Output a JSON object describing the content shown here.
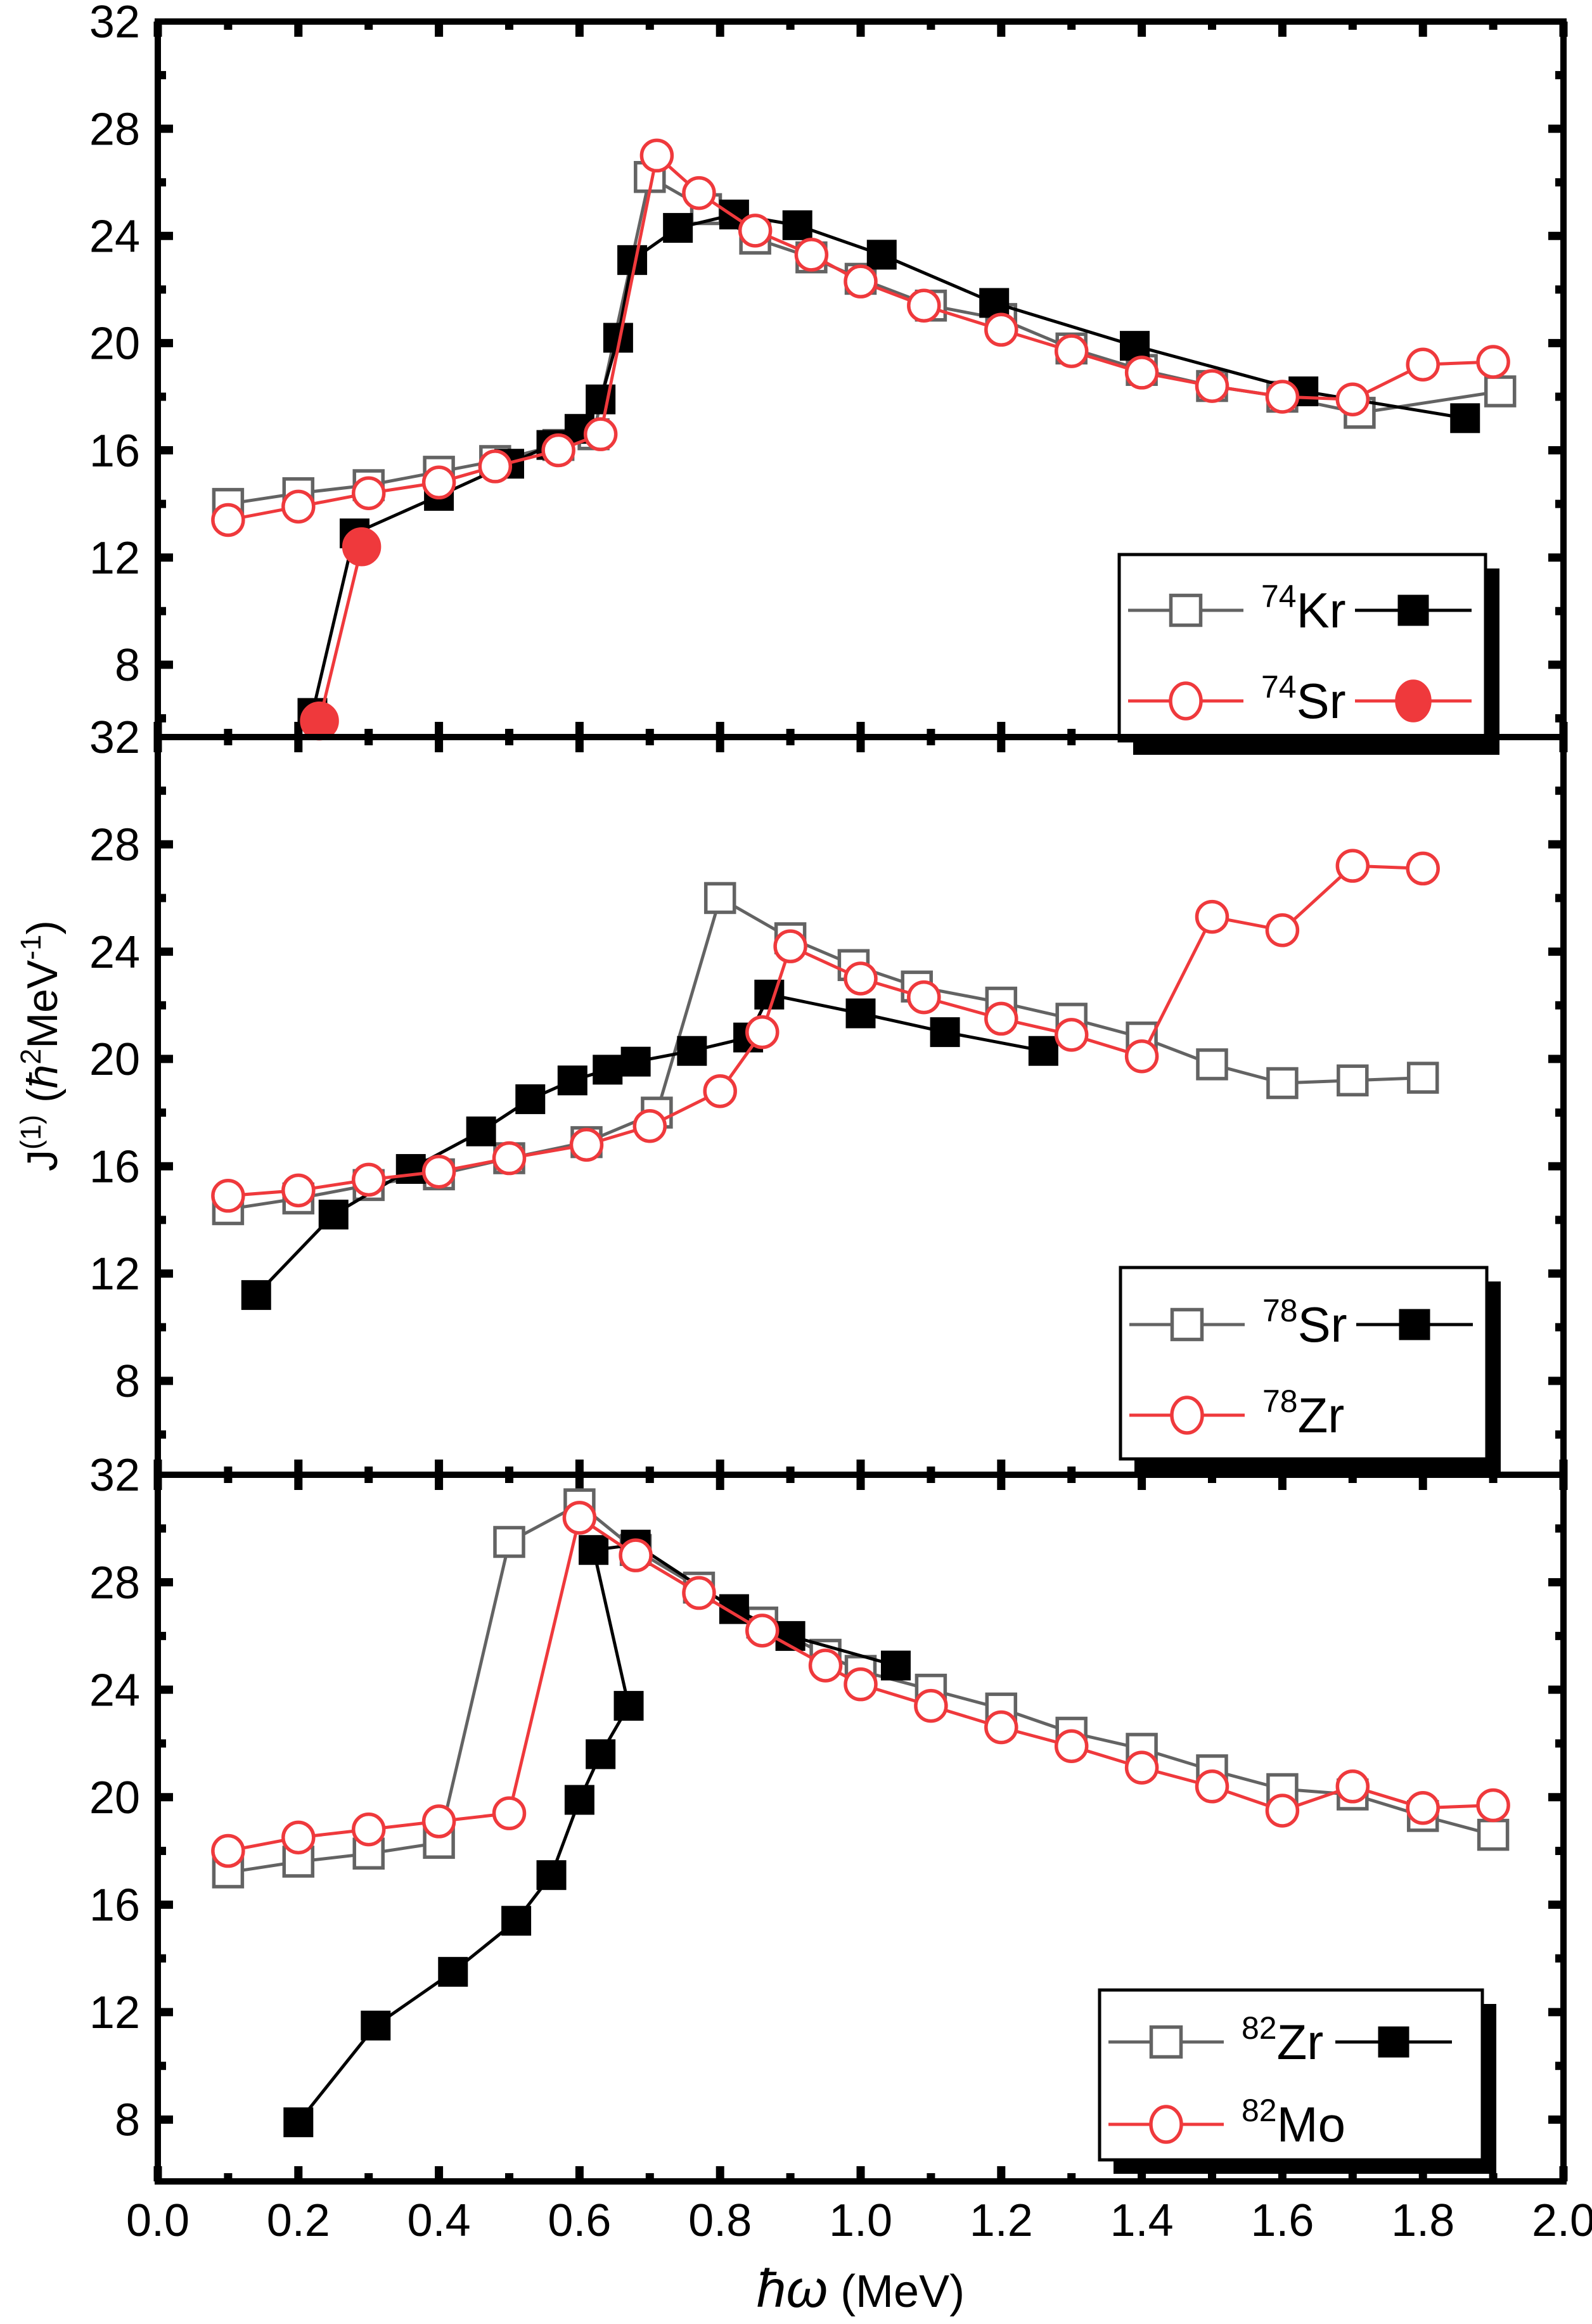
{
  "colors": {
    "red": "#ef393c",
    "gray": "#636363",
    "black": "#000000",
    "background": "#ffffff"
  },
  "x_axis": {
    "label_main": "ħω",
    "label_unit": "(MeV)",
    "lim": [
      0.0,
      2.0
    ],
    "tick_values": [
      0.0,
      0.2,
      0.4,
      0.6,
      0.8,
      1.0,
      1.2,
      1.4,
      1.6,
      1.8,
      2.0
    ],
    "tick_labels": [
      "0.0",
      "0.2",
      "0.4",
      "0.6",
      "0.8",
      "1.0",
      "1.2",
      "1.4",
      "1.6",
      "1.8",
      "2.0"
    ],
    "minor_step": 0.1
  },
  "y_axis": {
    "label_plain": "J(1) (ħ2MeV-1)",
    "label_segments": [
      {
        "t": "J"
      },
      {
        "t": "(1)",
        "sup": true
      },
      {
        "t": " ("
      },
      {
        "t": "ħ",
        "italic": true
      },
      {
        "t": "2",
        "sup": true
      },
      {
        "t": "MeV"
      },
      {
        "t": "-1",
        "sup": true
      },
      {
        "t": ")"
      }
    ],
    "major_tick_values": [
      8,
      12,
      16,
      20,
      24,
      28,
      32
    ],
    "major_tick_labels": [
      "8",
      "12",
      "16",
      "20",
      "24",
      "28",
      "32"
    ],
    "minor_tick_values": [
      6,
      10,
      14,
      18,
      22,
      26,
      30
    ]
  },
  "chart_data": [
    {
      "type": "line",
      "id": "74",
      "ylim": [
        5.3,
        32
      ],
      "legend": {
        "rows": [
          {
            "sup": "74",
            "label": "Kr",
            "left": {
              "marker": "square",
              "fill": "open",
              "color": "gray"
            },
            "right": {
              "marker": "square",
              "fill": "filled",
              "color": "black"
            }
          },
          {
            "sup": "74",
            "label": "Sr",
            "left": {
              "marker": "circle",
              "fill": "open",
              "color": "red"
            },
            "right": {
              "marker": "circle",
              "fill": "filled",
              "color": "red"
            }
          }
        ]
      },
      "series": [
        {
          "id": "74Kr-open",
          "marker": "square",
          "fill": "open",
          "color": "gray",
          "points": [
            [
              0.1,
              14.0
            ],
            [
              0.2,
              14.4
            ],
            [
              0.3,
              14.7
            ],
            [
              0.4,
              15.2
            ],
            [
              0.48,
              15.6
            ],
            [
              0.57,
              16.2
            ],
            [
              0.62,
              16.6
            ],
            [
              0.7,
              26.2
            ],
            [
              0.78,
              25.0
            ],
            [
              0.85,
              23.9
            ],
            [
              0.93,
              23.2
            ],
            [
              1.0,
              22.4
            ],
            [
              1.1,
              21.4
            ],
            [
              1.2,
              20.9
            ],
            [
              1.3,
              19.8
            ],
            [
              1.4,
              19.0
            ],
            [
              1.5,
              18.4
            ],
            [
              1.6,
              18.0
            ],
            [
              1.71,
              17.4
            ],
            [
              1.91,
              18.2
            ]
          ]
        },
        {
          "id": "74Kr-filled",
          "marker": "square",
          "fill": "filled",
          "color": "black",
          "points": [
            [
              0.22,
              6.2
            ],
            [
              0.28,
              12.9
            ],
            [
              0.4,
              14.3
            ],
            [
              0.5,
              15.5
            ],
            [
              0.56,
              16.2
            ],
            [
              0.6,
              16.8
            ],
            [
              0.63,
              17.9
            ],
            [
              0.655,
              20.2
            ],
            [
              0.675,
              23.1
            ],
            [
              0.74,
              24.3
            ],
            [
              0.82,
              24.8
            ],
            [
              0.91,
              24.4
            ],
            [
              1.03,
              23.3
            ],
            [
              1.19,
              21.5
            ],
            [
              1.39,
              19.9
            ],
            [
              1.63,
              18.2
            ],
            [
              1.86,
              17.2
            ]
          ]
        },
        {
          "id": "74Sr-open",
          "marker": "circle",
          "fill": "open",
          "color": "red",
          "points": [
            [
              0.1,
              13.4
            ],
            [
              0.2,
              13.9
            ],
            [
              0.3,
              14.4
            ],
            [
              0.4,
              14.8
            ],
            [
              0.48,
              15.4
            ],
            [
              0.57,
              16.0
            ],
            [
              0.63,
              16.6
            ],
            [
              0.71,
              27.0
            ],
            [
              0.77,
              25.6
            ],
            [
              0.85,
              24.2
            ],
            [
              0.93,
              23.3
            ],
            [
              1.0,
              22.3
            ],
            [
              1.09,
              21.4
            ],
            [
              1.2,
              20.5
            ],
            [
              1.3,
              19.7
            ],
            [
              1.4,
              18.9
            ],
            [
              1.5,
              18.4
            ],
            [
              1.6,
              18.0
            ],
            [
              1.7,
              17.9
            ],
            [
              1.8,
              19.2
            ],
            [
              1.9,
              19.3
            ]
          ]
        },
        {
          "id": "74Sr-filled",
          "marker": "circle",
          "fill": "filled",
          "color": "red",
          "points": [
            [
              0.23,
              5.9
            ],
            [
              0.29,
              12.4
            ]
          ]
        }
      ]
    },
    {
      "type": "line",
      "id": "78",
      "ylim": [
        4.5,
        32
      ],
      "legend": {
        "rows": [
          {
            "sup": "78",
            "label": "Sr",
            "left": {
              "marker": "square",
              "fill": "open",
              "color": "gray"
            },
            "right": {
              "marker": "square",
              "fill": "filled",
              "color": "black"
            }
          },
          {
            "sup": "78",
            "label": "Zr",
            "left": {
              "marker": "circle",
              "fill": "open",
              "color": "red"
            },
            "right": null
          }
        ]
      },
      "series": [
        {
          "id": "78Sr-open",
          "marker": "square",
          "fill": "open",
          "color": "gray",
          "points": [
            [
              0.1,
              14.4
            ],
            [
              0.2,
              14.8
            ],
            [
              0.3,
              15.3
            ],
            [
              0.4,
              15.7
            ],
            [
              0.5,
              16.3
            ],
            [
              0.61,
              16.9
            ],
            [
              0.71,
              18.0
            ],
            [
              0.8,
              26.0
            ],
            [
              0.9,
              24.5
            ],
            [
              0.99,
              23.5
            ],
            [
              1.08,
              22.7
            ],
            [
              1.2,
              22.1
            ],
            [
              1.3,
              21.5
            ],
            [
              1.4,
              20.8
            ],
            [
              1.5,
              19.8
            ],
            [
              1.6,
              19.1
            ],
            [
              1.7,
              19.2
            ],
            [
              1.8,
              19.3
            ]
          ]
        },
        {
          "id": "78Sr-filled",
          "marker": "square",
          "fill": "filled",
          "color": "black",
          "points": [
            [
              0.14,
              11.2
            ],
            [
              0.25,
              14.2
            ],
            [
              0.36,
              15.9
            ],
            [
              0.46,
              17.3
            ],
            [
              0.53,
              18.5
            ],
            [
              0.59,
              19.2
            ],
            [
              0.64,
              19.6
            ],
            [
              0.68,
              19.9
            ],
            [
              0.76,
              20.3
            ],
            [
              0.84,
              20.8
            ],
            [
              0.87,
              22.4
            ],
            [
              1.0,
              21.7
            ],
            [
              1.12,
              21.0
            ],
            [
              1.26,
              20.3
            ]
          ]
        },
        {
          "id": "78Zr-open",
          "marker": "circle",
          "fill": "open",
          "color": "red",
          "points": [
            [
              0.1,
              14.9
            ],
            [
              0.2,
              15.1
            ],
            [
              0.3,
              15.5
            ],
            [
              0.4,
              15.8
            ],
            [
              0.5,
              16.3
            ],
            [
              0.61,
              16.8
            ],
            [
              0.7,
              17.5
            ],
            [
              0.8,
              18.8
            ],
            [
              0.86,
              21.0
            ],
            [
              0.9,
              24.2
            ],
            [
              1.0,
              23.0
            ],
            [
              1.09,
              22.3
            ],
            [
              1.2,
              21.5
            ],
            [
              1.3,
              20.9
            ],
            [
              1.4,
              20.1
            ],
            [
              1.5,
              25.3
            ],
            [
              1.6,
              24.8
            ],
            [
              1.7,
              27.2
            ],
            [
              1.8,
              27.1
            ]
          ]
        }
      ]
    },
    {
      "type": "line",
      "id": "82",
      "ylim": [
        5.7,
        32
      ],
      "legend": {
        "rows": [
          {
            "sup": "82",
            "label": "Zr",
            "left": {
              "marker": "square",
              "fill": "open",
              "color": "gray"
            },
            "right": {
              "marker": "square",
              "fill": "filled",
              "color": "black"
            }
          },
          {
            "sup": "82",
            "label": "Mo",
            "left": {
              "marker": "circle",
              "fill": "open",
              "color": "red"
            },
            "right": null
          }
        ]
      },
      "series": [
        {
          "id": "82Zr-open",
          "marker": "square",
          "fill": "open",
          "color": "gray",
          "points": [
            [
              0.1,
              17.2
            ],
            [
              0.2,
              17.6
            ],
            [
              0.3,
              17.9
            ],
            [
              0.4,
              18.3
            ],
            [
              0.5,
              29.5
            ],
            [
              0.6,
              30.9
            ],
            [
              0.68,
              29.2
            ],
            [
              0.77,
              27.8
            ],
            [
              0.86,
              26.5
            ],
            [
              0.95,
              25.3
            ],
            [
              1.0,
              24.7
            ],
            [
              1.1,
              24.0
            ],
            [
              1.2,
              23.3
            ],
            [
              1.3,
              22.4
            ],
            [
              1.4,
              21.8
            ],
            [
              1.5,
              21.0
            ],
            [
              1.6,
              20.3
            ],
            [
              1.7,
              20.1
            ],
            [
              1.8,
              19.3
            ],
            [
              1.9,
              18.6
            ]
          ]
        },
        {
          "id": "82Zr-filled",
          "marker": "square",
          "fill": "filled",
          "color": "black",
          "points": [
            [
              0.2,
              7.9
            ],
            [
              0.31,
              11.5
            ],
            [
              0.42,
              13.5
            ],
            [
              0.51,
              15.4
            ],
            [
              0.56,
              17.1
            ],
            [
              0.6,
              19.9
            ],
            [
              0.63,
              21.6
            ],
            [
              0.67,
              23.4
            ],
            [
              0.62,
              29.2
            ],
            [
              0.68,
              29.4
            ],
            [
              0.82,
              27.0
            ],
            [
              0.9,
              26.0
            ],
            [
              1.05,
              24.9
            ]
          ]
        },
        {
          "id": "82Mo-open",
          "marker": "circle",
          "fill": "open",
          "color": "red",
          "points": [
            [
              0.1,
              18.0
            ],
            [
              0.2,
              18.5
            ],
            [
              0.3,
              18.8
            ],
            [
              0.4,
              19.1
            ],
            [
              0.5,
              19.4
            ],
            [
              0.6,
              30.4
            ],
            [
              0.68,
              29.0
            ],
            [
              0.77,
              27.6
            ],
            [
              0.86,
              26.2
            ],
            [
              0.95,
              24.9
            ],
            [
              1.0,
              24.2
            ],
            [
              1.1,
              23.4
            ],
            [
              1.2,
              22.6
            ],
            [
              1.3,
              21.9
            ],
            [
              1.4,
              21.1
            ],
            [
              1.5,
              20.4
            ],
            [
              1.6,
              19.5
            ],
            [
              1.7,
              20.4
            ],
            [
              1.8,
              19.6
            ],
            [
              1.9,
              19.7
            ]
          ]
        }
      ]
    }
  ]
}
